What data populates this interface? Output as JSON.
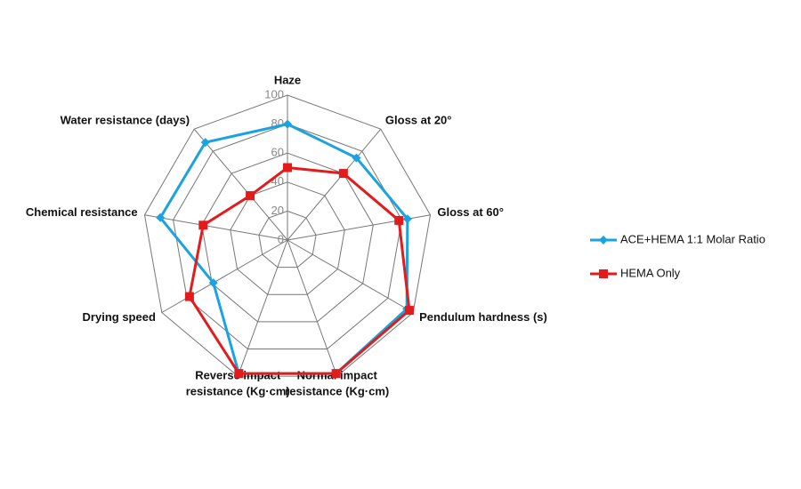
{
  "chart_data": {
    "type": "radar",
    "categories": [
      [
        "Haze"
      ],
      [
        "Gloss at 20°"
      ],
      [
        "Gloss at 60°"
      ],
      [
        "Pendulum hardness (s)"
      ],
      [
        "Normal impact",
        "resistance (Kg·cm)"
      ],
      [
        "Reverse impact",
        "resistance (Kg·cm)"
      ],
      [
        "Drying speed"
      ],
      [
        "Chemical resistance"
      ],
      [
        "Water resistance (days)"
      ]
    ],
    "series": [
      {
        "name": "ACE+HEMA 1:1 Molar Ratio",
        "color": "#1aa3e0",
        "marker": "diamond",
        "values": [
          80,
          74,
          84,
          95,
          98,
          98,
          59,
          89,
          88
        ]
      },
      {
        "name": "HEMA Only",
        "color": "#e41b1b",
        "marker": "square",
        "values": [
          50,
          60,
          78,
          97,
          98,
          98,
          78,
          59,
          40
        ]
      }
    ],
    "ylim": [
      0,
      100
    ],
    "yticks": [
      0,
      20,
      40,
      60,
      80,
      100
    ],
    "grid": true,
    "legend": "right"
  }
}
